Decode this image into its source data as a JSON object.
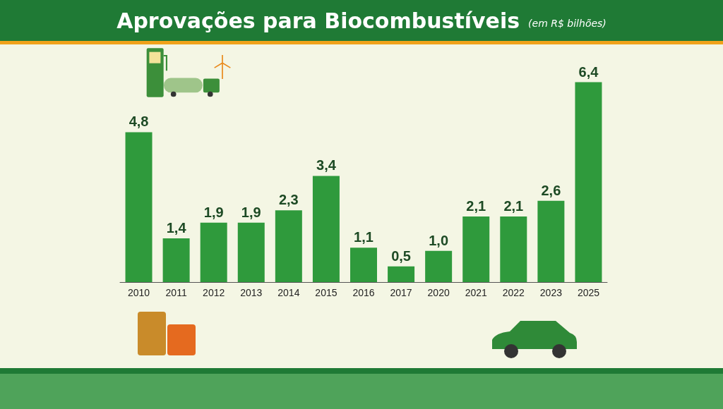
{
  "chart_data": {
    "type": "bar",
    "title": "Aprovações para Biocombustíveis",
    "subtitle": "(em R$ bilhões)",
    "categories": [
      "2010",
      "2011",
      "2012",
      "2013",
      "2014",
      "2015",
      "2016",
      "2017",
      "2020",
      "2021",
      "2022",
      "2023",
      "2025"
    ],
    "values": [
      4.8,
      1.4,
      1.9,
      1.9,
      2.3,
      3.4,
      1.1,
      0.5,
      1.0,
      2.1,
      2.1,
      2.6,
      6.4
    ],
    "value_labels": [
      "4,8",
      "1,4",
      "1,9",
      "1,9",
      "2,3",
      "3,4",
      "1,1",
      "0,5",
      "1,0",
      "2,1",
      "2,1",
      "2,6",
      "6,4"
    ],
    "color": "#2f9a3c",
    "grid": false
  }
}
